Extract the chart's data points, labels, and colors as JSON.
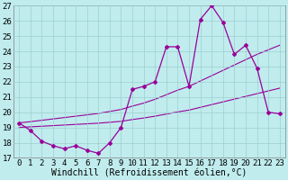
{
  "x_hours": [
    0,
    1,
    2,
    3,
    4,
    5,
    6,
    7,
    8,
    9,
    10,
    11,
    12,
    13,
    14,
    15,
    16,
    17,
    18,
    19,
    20,
    21,
    22,
    23
  ],
  "temp_actual": [
    19.3,
    18.8,
    18.1,
    17.8,
    17.6,
    17.8,
    17.5,
    17.3,
    18.0,
    19.0,
    21.5,
    21.7,
    22.0,
    24.3,
    24.3,
    21.7,
    26.1,
    27.0,
    25.9,
    23.8,
    24.4,
    22.9,
    20.0,
    19.9
  ],
  "linear_high": [
    19.3,
    19.38,
    19.47,
    19.56,
    19.65,
    19.74,
    19.83,
    19.92,
    20.05,
    20.18,
    20.4,
    20.6,
    20.85,
    21.15,
    21.45,
    21.7,
    22.05,
    22.4,
    22.75,
    23.1,
    23.45,
    23.8,
    24.1,
    24.4
  ],
  "linear_low": [
    19.0,
    19.04,
    19.08,
    19.12,
    19.16,
    19.2,
    19.24,
    19.28,
    19.34,
    19.4,
    19.52,
    19.62,
    19.74,
    19.88,
    20.02,
    20.14,
    20.32,
    20.5,
    20.68,
    20.86,
    21.04,
    21.22,
    21.4,
    21.58
  ],
  "ylim": [
    17,
    27
  ],
  "yticks": [
    17,
    18,
    19,
    20,
    21,
    22,
    23,
    24,
    25,
    26,
    27
  ],
  "xlabel": "Windchill (Refroidissement éolien,°C)",
  "line_color": "#990099",
  "bg_color": "#c0ecee",
  "grid_color": "#9dcece",
  "xlabel_fontsize": 7,
  "tick_fontsize": 6.5
}
